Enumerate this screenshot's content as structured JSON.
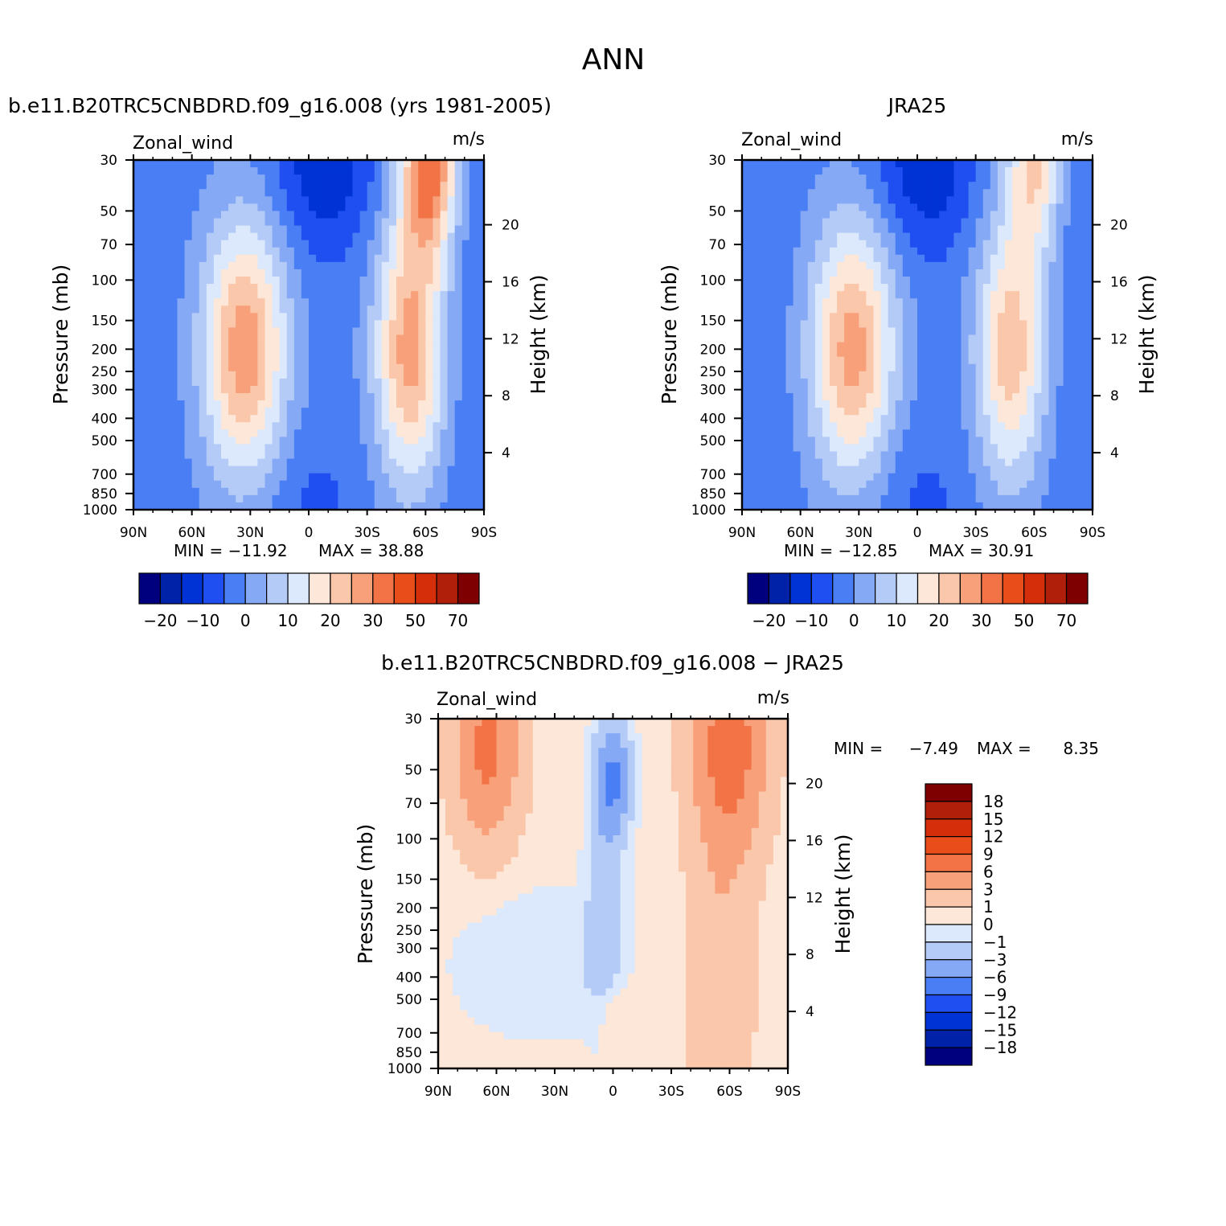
{
  "page_title": "ANN",
  "colors": {
    "main_palette": [
      "#00007f",
      "#0022a8",
      "#0033d6",
      "#1f4ff0",
      "#4a7ef5",
      "#86a9f5",
      "#b4cbf7",
      "#dce8fb",
      "#fde7d8",
      "#fbc7ab",
      "#f7a07a",
      "#f27446",
      "#e84d1a",
      "#d42e0b",
      "#b01f0a",
      "#7f0000"
    ],
    "diff_palette": [
      "#00007f",
      "#0022a8",
      "#0033d6",
      "#1f4ff0",
      "#4a7ef5",
      "#86a9f5",
      "#b4cbf7",
      "#dce8fb",
      "#fde7d8",
      "#fbc7ab",
      "#f7a07a",
      "#f27446",
      "#e84d1a",
      "#d42e0b",
      "#b01f0a",
      "#7f0000"
    ],
    "missing": "#ffffff"
  },
  "chart_data": [
    {
      "type": "heatmap",
      "title": "b.e11.B20TRC5CNBDRD.f09_g16.008 (yrs 1981-2005)",
      "field_label": "Zonal_wind",
      "units_label": "m/s",
      "ylabel": "Pressure (mb)",
      "ylabel_right": "Height (km)",
      "x_ticks": [
        "90N",
        "60N",
        "30N",
        "0",
        "30S",
        "60S",
        "90S"
      ],
      "x_values": [
        90,
        60,
        30,
        0,
        -30,
        -60,
        -90
      ],
      "y_ticks": [
        "30",
        "50",
        "70",
        "100",
        "150",
        "200",
        "250",
        "300",
        "400",
        "500",
        "700",
        "850",
        "1000"
      ],
      "y_values": [
        30,
        50,
        70,
        100,
        150,
        200,
        250,
        300,
        400,
        500,
        700,
        850,
        1000
      ],
      "right_ticks": [
        "20",
        "16",
        "12",
        "8",
        "4"
      ],
      "right_values": [
        20,
        16,
        12,
        8,
        4
      ],
      "min_label": "MIN = −11.92",
      "max_label": "MAX = 38.88",
      "min": -11.92,
      "max": 38.88,
      "colorbar_ticks": [
        "−20",
        "−10",
        "0",
        "10",
        "20",
        "30",
        "50",
        "70"
      ],
      "contour_levels": [
        -25,
        -20,
        -15,
        -10,
        -5,
        0,
        5,
        10,
        15,
        20,
        25,
        30,
        40,
        50,
        60,
        70
      ],
      "jets": [
        {
          "lat": 33,
          "p": 200,
          "peak": 31,
          "width_deg": 22,
          "depth": 1.3
        },
        {
          "lat": -52,
          "p": 200,
          "peak": 30,
          "width_deg": 18,
          "depth": 1.35
        },
        {
          "lat": -62,
          "p": 30,
          "peak": 36,
          "width_deg": 14,
          "depth": 0.9
        }
      ],
      "easterly": {
        "lat": -8,
        "p": 30,
        "peak": -12,
        "width_deg": 25,
        "depth": 0.9
      }
    },
    {
      "type": "heatmap",
      "title": "JRA25",
      "field_label": "Zonal_wind",
      "units_label": "m/s",
      "ylabel": "Pressure (mb)",
      "ylabel_right": "Height (km)",
      "x_ticks": [
        "90N",
        "60N",
        "30N",
        "0",
        "30S",
        "60S",
        "90S"
      ],
      "x_values": [
        90,
        60,
        30,
        0,
        -30,
        -60,
        -90
      ],
      "y_ticks": [
        "30",
        "50",
        "70",
        "100",
        "150",
        "200",
        "250",
        "300",
        "400",
        "500",
        "700",
        "850",
        "1000"
      ],
      "y_values": [
        30,
        50,
        70,
        100,
        150,
        200,
        250,
        300,
        400,
        500,
        700,
        850,
        1000
      ],
      "right_ticks": [
        "20",
        "16",
        "12",
        "8",
        "4"
      ],
      "right_values": [
        20,
        16,
        12,
        8,
        4
      ],
      "min_label": "MIN = −12.85",
      "max_label": "MAX = 30.91",
      "min": -12.85,
      "max": 30.91,
      "colorbar_ticks": [
        "−20",
        "−10",
        "0",
        "10",
        "20",
        "30",
        "50",
        "70"
      ],
      "contour_levels": [
        -25,
        -20,
        -15,
        -10,
        -5,
        0,
        5,
        10,
        15,
        20,
        25,
        30,
        40,
        50,
        60,
        70
      ],
      "jets": [
        {
          "lat": 33,
          "p": 200,
          "peak": 30,
          "width_deg": 22,
          "depth": 1.3
        },
        {
          "lat": -48,
          "p": 200,
          "peak": 26,
          "width_deg": 18,
          "depth": 1.35
        },
        {
          "lat": -60,
          "p": 30,
          "peak": 22,
          "width_deg": 14,
          "depth": 0.9
        }
      ],
      "easterly": {
        "lat": -4,
        "p": 30,
        "peak": -12,
        "width_deg": 25,
        "depth": 0.9
      }
    },
    {
      "type": "heatmap",
      "title": "b.e11.B20TRC5CNBDRD.f09_g16.008 − JRA25",
      "field_label": "Zonal_wind",
      "units_label": "m/s",
      "ylabel": "Pressure (mb)",
      "ylabel_right": "Height (km)",
      "x_ticks": [
        "90N",
        "60N",
        "30N",
        "0",
        "30S",
        "60S",
        "90S"
      ],
      "x_values": [
        90,
        60,
        30,
        0,
        -30,
        -60,
        -90
      ],
      "y_ticks": [
        "30",
        "50",
        "70",
        "100",
        "150",
        "200",
        "250",
        "300",
        "400",
        "500",
        "700",
        "850",
        "1000"
      ],
      "y_values": [
        30,
        50,
        70,
        100,
        150,
        200,
        250,
        300,
        400,
        500,
        700,
        850,
        1000
      ],
      "right_ticks": [
        "20",
        "16",
        "12",
        "8",
        "4"
      ],
      "right_values": [
        20,
        16,
        12,
        8,
        4
      ],
      "min_label": "MIN =",
      "min_value": "−7.49",
      "max_label": "MAX =",
      "max_value": "8.35",
      "min": -7.49,
      "max": 8.35,
      "colorbar_ticks": [
        "18",
        "15",
        "12",
        "9",
        "6",
        "3",
        "1",
        "0",
        "−1",
        "−3",
        "−6",
        "−9",
        "−12",
        "−15",
        "−18"
      ],
      "contour_levels": [
        -21,
        -18,
        -15,
        -12,
        -9,
        -6,
        -3,
        -1,
        0,
        1,
        3,
        6,
        9,
        12,
        15,
        18,
        21
      ]
    }
  ]
}
